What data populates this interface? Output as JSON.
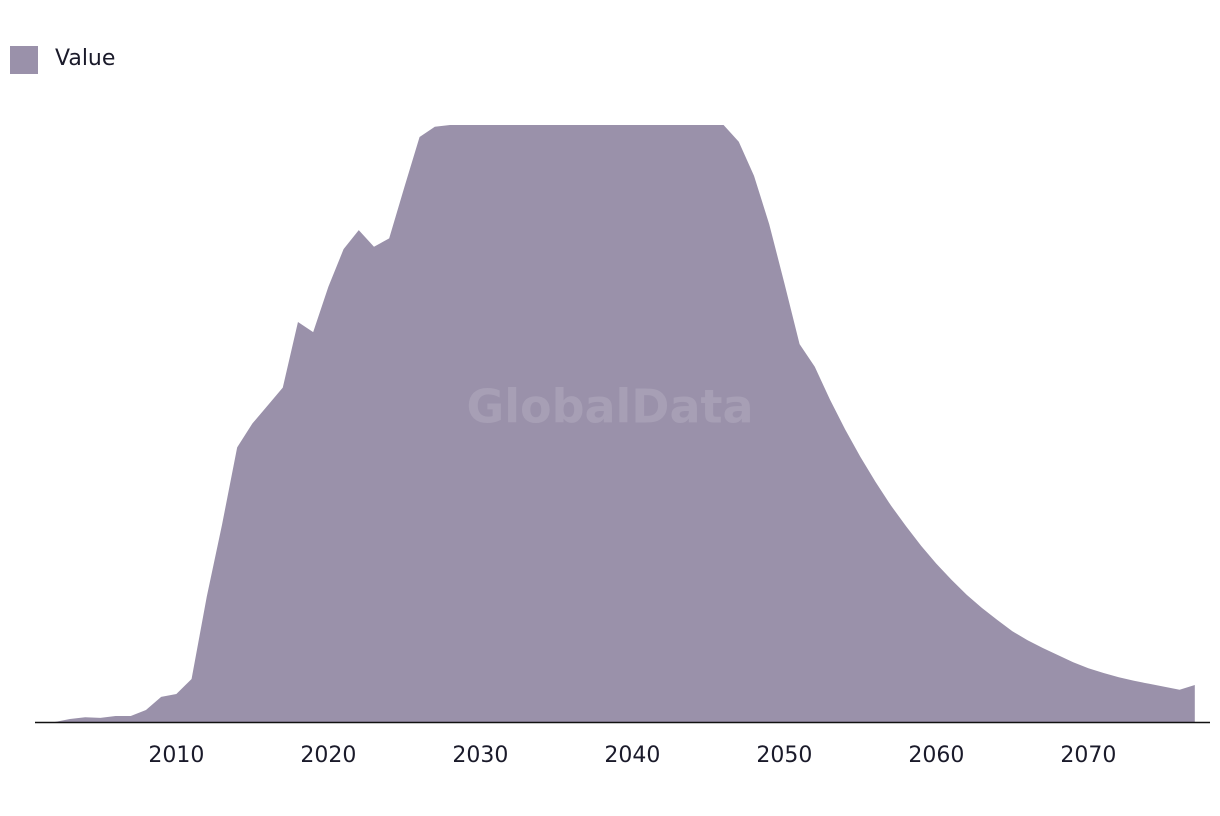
{
  "chart_data": {
    "type": "area",
    "watermark": "GlobalData",
    "x": [
      2002,
      2003,
      2004,
      2005,
      2006,
      2007,
      2008,
      2009,
      2010,
      2011,
      2012,
      2013,
      2014,
      2015,
      2016,
      2017,
      2018,
      2019,
      2020,
      2021,
      2022,
      2023,
      2024,
      2025,
      2026,
      2027,
      2028,
      2029,
      2030,
      2031,
      2032,
      2033,
      2034,
      2035,
      2036,
      2037,
      2038,
      2039,
      2040,
      2041,
      2042,
      2043,
      2044,
      2045,
      2046,
      2047,
      2048,
      2049,
      2050,
      2051,
      2052,
      2053,
      2054,
      2055,
      2056,
      2057,
      2058,
      2059,
      2060,
      2061,
      2062,
      2063,
      2064,
      2065,
      2066,
      2067,
      2068,
      2069,
      2070,
      2071,
      2072,
      2073,
      2074,
      2075,
      2076,
      2077
    ],
    "series": [
      {
        "name": "Value",
        "color": "#9a91aa",
        "values": [
          0,
          0.5,
          0.8,
          0.7,
          1,
          1,
          2,
          4.2,
          4.7,
          7.2,
          21,
          33,
          46,
          50,
          53,
          56,
          67,
          65.3,
          72.9,
          79.2,
          82.4,
          79.6,
          81,
          89.6,
          98,
          99.7,
          100,
          100,
          100,
          100,
          100,
          100,
          100,
          100,
          100,
          100,
          100,
          100,
          100,
          100,
          100,
          100,
          100,
          100,
          100,
          97.2,
          91.5,
          83.4,
          73.5,
          63.3,
          59.5,
          54,
          49,
          44.4,
          40.2,
          36.3,
          32.8,
          29.5,
          26.5,
          23.8,
          21.3,
          19.1,
          17.1,
          15.2,
          13.7,
          12.4,
          11.2,
          10,
          9,
          8.2,
          7.5,
          6.9,
          6.4,
          5.9,
          5.4,
          6.2
        ]
      }
    ],
    "xlim": [
      2000.7,
      2078
    ],
    "xticks": [
      2010,
      2020,
      2030,
      2040,
      2050,
      2060,
      2070
    ],
    "ylim": [
      0,
      100
    ],
    "legend": "top-left"
  }
}
